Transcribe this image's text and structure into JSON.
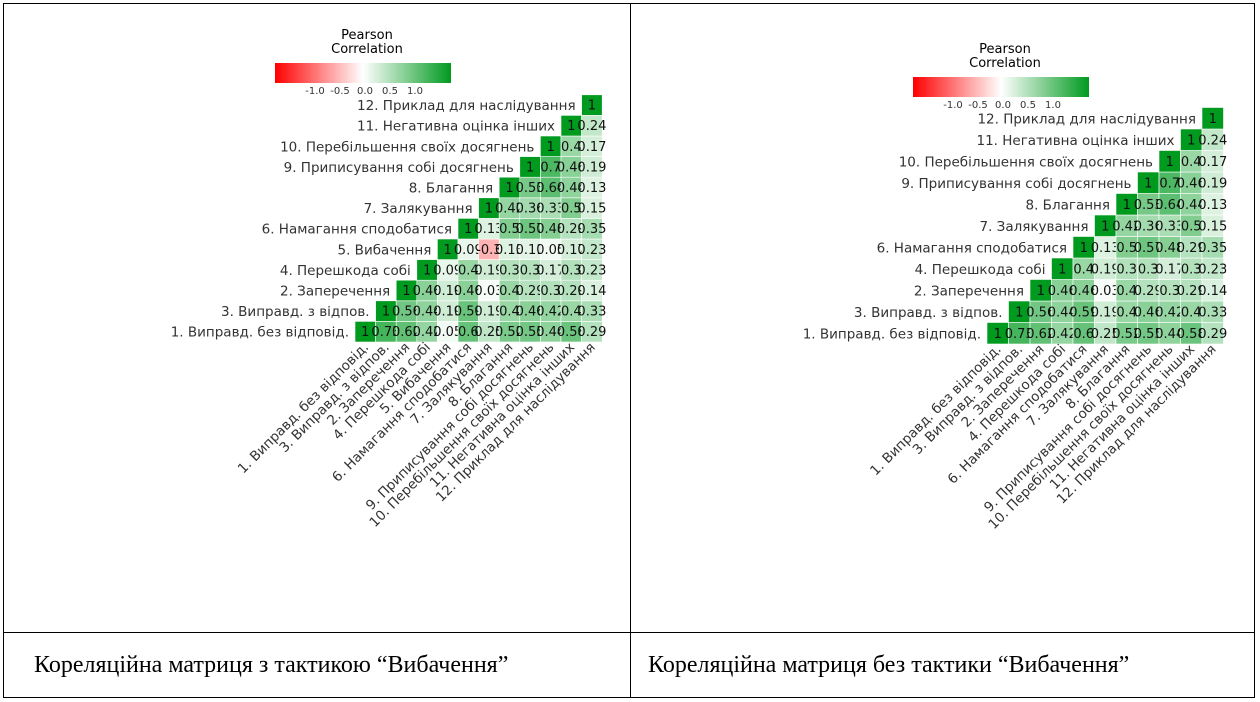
{
  "chart_data": [
    {
      "type": "heatmap",
      "legend": {
        "title_lines": [
          "Pearson",
          "Correlation"
        ],
        "ticks": [
          "-1.0",
          "-0.5",
          "0.0",
          "0.5",
          "1.0"
        ],
        "range": [
          -1,
          1
        ]
      },
      "color_scale": {
        "low": "#ff0000",
        "mid": "#ffffff",
        "high": "#009a1f"
      },
      "variables": [
        "1. Виправд. без відповід.",
        "3. Виправд. з відпов.",
        "2. Заперечення",
        "4. Перешкода собі",
        "5. Вибачення",
        "6. Намагання сподобатися",
        "7. Залякування",
        "8. Благання",
        "9. Приписування собі досягнень",
        "10. Перебільшення своїх досягнень",
        "11. Негативна оцінка інших",
        "12. Приклад для наслідування"
      ],
      "rows": [
        [
          "1",
          "0.73",
          "0.62",
          "0.42",
          "0.05",
          "0.6",
          "0.25",
          "0.52",
          "0.55",
          "0.44",
          "0.58",
          "0.29"
        ],
        [
          "1",
          "0.56",
          "0.44",
          "0.19",
          "0.59",
          "0.19",
          "0.4",
          "0.46",
          "0.42",
          "0.4",
          "0.33"
        ],
        [
          "1",
          "0.46",
          "0.19",
          "0.46",
          "0.03",
          "0.4",
          "0.29",
          "0.3",
          "0.29",
          "0.14"
        ],
        [
          "1",
          "0.09",
          "0.4",
          "0.19",
          "0.3",
          "0.3",
          "0.17",
          "0.3",
          "0.23"
        ],
        [
          "1",
          "0.09",
          "-0.3",
          "0.13",
          "0.11",
          "0.05",
          "0.17",
          "0.23"
        ],
        [
          "1",
          "0.13",
          "0.5",
          "0.57",
          "0.48",
          "0.29",
          "0.35"
        ],
        [
          "1",
          "0.42",
          "0.36",
          "0.33",
          "0.5",
          "0.15"
        ],
        [
          "1",
          "0.53",
          "0.64",
          "0.44",
          "0.13"
        ],
        [
          "1",
          "0.7",
          "0.46",
          "0.19"
        ],
        [
          "1",
          "0.4",
          "0.17"
        ],
        [
          "1",
          "0.24"
        ],
        [
          "1"
        ]
      ]
    },
    {
      "type": "heatmap",
      "legend": {
        "title_lines": [
          "Pearson",
          "Correlation"
        ],
        "ticks": [
          "-1.0",
          "-0.5",
          "0.0",
          "0.5",
          "1.0"
        ],
        "range": [
          -1,
          1
        ]
      },
      "color_scale": {
        "low": "#ff0000",
        "mid": "#ffffff",
        "high": "#009a1f"
      },
      "variables": [
        "1. Виправд. без відповід.",
        "3. Виправд. з відпов.",
        "2. Заперечення",
        "4. Перешкода собі",
        "6. Намагання сподобатися",
        "7. Залякування",
        "8. Благання",
        "9. Приписування собі досягнень",
        "10. Перебільшення своїх досягнень",
        "11. Негативна оцінка інших",
        "12. Приклад для наслідування"
      ],
      "rows": [
        [
          "1",
          "0.73",
          "0.62",
          "0.42",
          "0.6",
          "0.25",
          "0.52",
          "0.55",
          "0.44",
          "0.58",
          "0.29"
        ],
        [
          "1",
          "0.56",
          "0.44",
          "0.59",
          "0.19",
          "0.4",
          "0.46",
          "0.42",
          "0.4",
          "0.33"
        ],
        [
          "1",
          "0.46",
          "0.46",
          "0.03",
          "0.4",
          "0.29",
          "0.3",
          "0.29",
          "0.14"
        ],
        [
          "1",
          "0.4",
          "0.19",
          "0.3",
          "0.3",
          "0.17",
          "0.3",
          "0.23"
        ],
        [
          "1",
          "0.13",
          "0.5",
          "0.57",
          "0.48",
          "0.29",
          "0.35"
        ],
        [
          "1",
          "0.42",
          "0.36",
          "0.33",
          "0.5",
          "0.15"
        ],
        [
          "1",
          "0.53",
          "0.64",
          "0.44",
          "0.13"
        ],
        [
          "1",
          "0.7",
          "0.46",
          "0.19"
        ],
        [
          "1",
          "0.4",
          "0.17"
        ],
        [
          "1",
          "0.24"
        ],
        [
          "1"
        ]
      ]
    }
  ],
  "captions": {
    "left": "Кореляційна матриця з тактикою “Вибачення”",
    "right": "Кореляційна матриця без тактики “Вибачення”"
  }
}
